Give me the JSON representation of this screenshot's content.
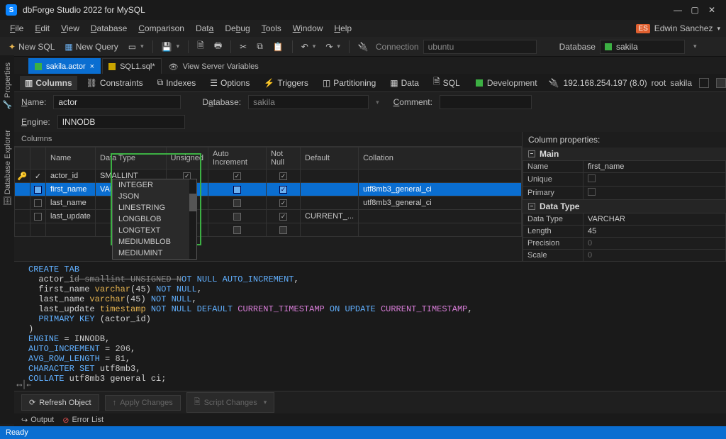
{
  "window": {
    "title": "dbForge Studio 2022 for MySQL",
    "user": "Edwin Sanchez",
    "user_badge": "ES"
  },
  "menu": [
    "File",
    "Edit",
    "View",
    "Database",
    "Comparison",
    "Data",
    "Debug",
    "Tools",
    "Window",
    "Help"
  ],
  "toolbar": {
    "new_sql": "New SQL",
    "new_query": "New Query",
    "connection_label": "Connection",
    "connection_value": "ubuntu",
    "database_label": "Database",
    "database_value": "sakila"
  },
  "filetabs": {
    "active": "sakila.actor",
    "second": "SQL1.sql*",
    "varlink": "View Server Variables"
  },
  "sidetabs": [
    "Properties",
    "Database Explorer"
  ],
  "designer_tabs": [
    "Columns",
    "Constraints",
    "Indexes",
    "Options",
    "Triggers",
    "Partitioning",
    "Data",
    "SQL"
  ],
  "env": {
    "label": "Development",
    "ip": "192.168.254.197 (8.0)",
    "user": "root",
    "db": "sakila"
  },
  "form": {
    "name_label": "Name:",
    "name_value": "actor",
    "database_label": "Database:",
    "database_value": "sakila",
    "comment_label": "Comment:",
    "comment_value": "",
    "engine_label": "Engine:",
    "engine_value": "INNODB"
  },
  "grid": {
    "header": "Columns",
    "cols": [
      "Name",
      "Data Type",
      "Unsigned",
      "Auto Increment",
      "Not Null",
      "Default",
      "Collation"
    ],
    "rows": [
      {
        "name": "actor_id",
        "type": "SMALLINT",
        "unsigned": true,
        "autoinc": true,
        "notnull": true,
        "default": "",
        "collation": ""
      },
      {
        "name": "first_name",
        "type": "VARCHAR(45)",
        "unsigned": false,
        "autoinc": false,
        "notnull": true,
        "default": "",
        "collation": "utf8mb3_general_ci",
        "selected": true
      },
      {
        "name": "last_name",
        "type": "",
        "unsigned": false,
        "autoinc": false,
        "notnull": true,
        "default": "",
        "collation": "utf8mb3_general_ci"
      },
      {
        "name": "last_update",
        "type": "",
        "unsigned": false,
        "autoinc": false,
        "notnull": true,
        "default": "CURRENT_...",
        "collation": ""
      }
    ],
    "dropdown": [
      "INTEGER",
      "JSON",
      "LINESTRING",
      "LONGBLOB",
      "LONGTEXT",
      "MEDIUMBLOB",
      "MEDIUMINT"
    ]
  },
  "props": {
    "title": "Column properties:",
    "section_main": "Main",
    "name_label": "Name",
    "name_value": "first_name",
    "unique_label": "Unique",
    "primary_label": "Primary",
    "section_dt": "Data Type",
    "dt_label": "Data Type",
    "dt_value": "VARCHAR",
    "len_label": "Length",
    "len_value": "45",
    "prec_label": "Precision",
    "prec_value": "0",
    "scale_label": "Scale",
    "scale_value": "0"
  },
  "code_lines": [
    {
      "t": "CREATE TABLE",
      "c": "kw"
    },
    {
      "raw": "  actor_id smallint UNSIGNED NOT NULL AUTO_INCREMENT,"
    },
    {
      "raw": "  first_name varchar(45) NOT NULL,"
    },
    {
      "raw": "  last_name varchar(45) NOT NULL,"
    },
    {
      "raw": "  last_update timestamp NOT NULL DEFAULT CURRENT_TIMESTAMP ON UPDATE CURRENT_TIMESTAMP,"
    },
    {
      "raw": "  PRIMARY KEY (actor_id)"
    },
    {
      "raw": ")"
    },
    {
      "raw": "ENGINE = INNODB,"
    },
    {
      "raw": "AUTO_INCREMENT = 206,"
    },
    {
      "raw": "AVG_ROW_LENGTH = 81,"
    },
    {
      "raw": "CHARACTER SET utf8mb3,"
    },
    {
      "raw": "COLLATE utf8mb3 general ci;"
    }
  ],
  "actions": {
    "refresh": "Refresh Object",
    "apply": "Apply Changes",
    "script": "Script Changes"
  },
  "outputtabs": {
    "output": "Output",
    "errors": "Error List"
  },
  "status": "Ready"
}
